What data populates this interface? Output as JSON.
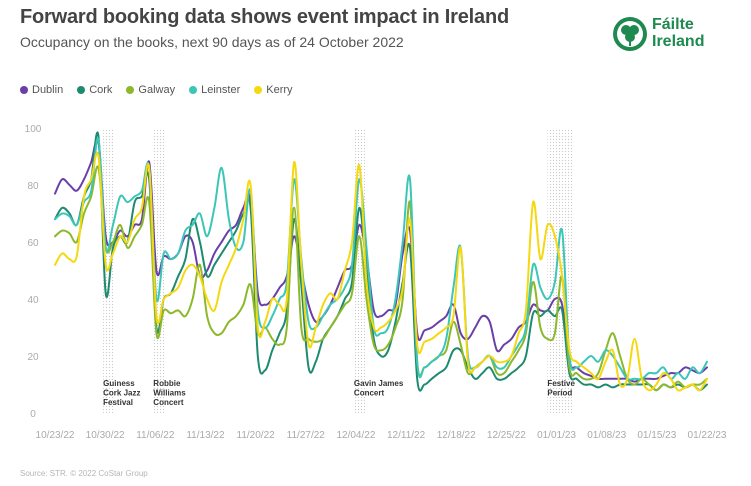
{
  "title": "Forward booking data shows event impact in Ireland",
  "subtitle": "Occupancy on the books, next 90 days as of 24 October 2022",
  "logo": {
    "line1": "Fáilte",
    "line2": "Ireland",
    "icon": "shamrock-icon",
    "color": "#1f8a4f"
  },
  "source": "Source: STR. © 2022 CoStar Group",
  "chart_data": {
    "type": "line",
    "title": "Forward booking data shows event impact in Ireland",
    "xlabel": "",
    "ylabel": "",
    "ylim": [
      0,
      100
    ],
    "yticks": [
      0,
      20,
      40,
      60,
      80,
      100
    ],
    "x_start": "10/23/22",
    "days": 91,
    "xticks": [
      {
        "day": 0,
        "label": "10/23/22"
      },
      {
        "day": 7,
        "label": "10/30/22"
      },
      {
        "day": 14,
        "label": "11/06/22"
      },
      {
        "day": 21,
        "label": "11/13/22"
      },
      {
        "day": 28,
        "label": "11/20/22"
      },
      {
        "day": 35,
        "label": "11/27/22"
      },
      {
        "day": 42,
        "label": "12/04/22"
      },
      {
        "day": 49,
        "label": "12/11/22"
      },
      {
        "day": 56,
        "label": "12/18/22"
      },
      {
        "day": 63,
        "label": "12/25/22"
      },
      {
        "day": 70,
        "label": "01/01/23"
      },
      {
        "day": 77,
        "label": "01/08/23"
      },
      {
        "day": 84,
        "label": "01/15/23"
      },
      {
        "day": 91,
        "label": "01/22/23"
      }
    ],
    "legend_position": "top-left",
    "annotations": [
      {
        "day_from": 7,
        "day_to": 8,
        "lines": [
          "Guiness",
          "Cork Jazz",
          "Festival"
        ]
      },
      {
        "day_from": 14,
        "day_to": 15,
        "lines": [
          "Robbie",
          "Williams",
          "Concert"
        ]
      },
      {
        "day_from": 42,
        "day_to": 43,
        "lines": [
          "Gavin James",
          "Concert"
        ]
      },
      {
        "day_from": 69,
        "day_to": 72,
        "lines": [
          "Festive",
          "Period"
        ]
      }
    ],
    "series": [
      {
        "name": "Dublin",
        "color": "#6a3fa8",
        "values": [
          77,
          82,
          80,
          78,
          82,
          88,
          95,
          62,
          60,
          64,
          62,
          66,
          68,
          88,
          50,
          55,
          54,
          56,
          62,
          60,
          48,
          50,
          56,
          60,
          64,
          66,
          72,
          75,
          42,
          38,
          40,
          44,
          48,
          62,
          50,
          38,
          32,
          34,
          38,
          44,
          50,
          52,
          66,
          55,
          36,
          34,
          36,
          38,
          56,
          64,
          28,
          29,
          30,
          32,
          34,
          38,
          28,
          26,
          30,
          34,
          32,
          22,
          24,
          26,
          30,
          32,
          38,
          36,
          36,
          40,
          38,
          18,
          16,
          14,
          13,
          12,
          12,
          12,
          12,
          12,
          11,
          12,
          12,
          12,
          13,
          14,
          14,
          16,
          15,
          14,
          16
        ]
      },
      {
        "name": "Cork",
        "color": "#1e8a70",
        "values": [
          68,
          72,
          70,
          66,
          76,
          82,
          97,
          42,
          58,
          62,
          60,
          74,
          76,
          82,
          30,
          40,
          42,
          48,
          54,
          68,
          60,
          48,
          52,
          56,
          60,
          64,
          70,
          72,
          20,
          15,
          22,
          28,
          36,
          68,
          45,
          16,
          18,
          26,
          30,
          34,
          40,
          46,
          72,
          50,
          26,
          20,
          22,
          32,
          46,
          58,
          12,
          10,
          12,
          14,
          16,
          22,
          22,
          16,
          12,
          14,
          16,
          12,
          12,
          14,
          16,
          20,
          35,
          34,
          36,
          34,
          36,
          14,
          12,
          10,
          10,
          9,
          10,
          9,
          10,
          10,
          10,
          10,
          10,
          8,
          10,
          9,
          10,
          9,
          10,
          8,
          10
        ]
      },
      {
        "name": "Galway",
        "color": "#8cb82b",
        "values": [
          62,
          64,
          63,
          60,
          70,
          76,
          86,
          58,
          60,
          66,
          58,
          62,
          66,
          74,
          28,
          36,
          35,
          36,
          34,
          40,
          52,
          34,
          28,
          28,
          32,
          34,
          38,
          45,
          28,
          30,
          26,
          24,
          30,
          72,
          30,
          26,
          25,
          26,
          30,
          34,
          38,
          42,
          62,
          40,
          24,
          22,
          24,
          30,
          40,
          74,
          18,
          16,
          18,
          20,
          22,
          32,
          24,
          14,
          16,
          18,
          20,
          14,
          14,
          18,
          22,
          28,
          46,
          30,
          26,
          28,
          48,
          16,
          14,
          12,
          12,
          14,
          22,
          28,
          20,
          12,
          10,
          12,
          10,
          8,
          10,
          9,
          11,
          9,
          10,
          10,
          12
        ]
      },
      {
        "name": "Leinster",
        "color": "#3cc6b8",
        "values": [
          68,
          70,
          69,
          66,
          74,
          78,
          96,
          58,
          66,
          76,
          74,
          76,
          78,
          86,
          40,
          56,
          54,
          56,
          64,
          66,
          70,
          62,
          72,
          86,
          68,
          58,
          60,
          78,
          36,
          30,
          34,
          40,
          46,
          82,
          54,
          32,
          30,
          34,
          38,
          40,
          44,
          52,
          82,
          58,
          30,
          28,
          30,
          40,
          60,
          82,
          18,
          16,
          18,
          20,
          26,
          44,
          58,
          20,
          16,
          18,
          20,
          16,
          16,
          20,
          24,
          30,
          52,
          44,
          40,
          46,
          64,
          20,
          16,
          18,
          20,
          18,
          22,
          20,
          16,
          12,
          12,
          12,
          14,
          14,
          16,
          12,
          14,
          12,
          16,
          14,
          18
        ]
      },
      {
        "name": "Kerry",
        "color": "#f5d80f",
        "values": [
          52,
          56,
          54,
          55,
          76,
          82,
          90,
          52,
          56,
          62,
          60,
          68,
          72,
          86,
          34,
          40,
          42,
          44,
          50,
          52,
          48,
          40,
          36,
          46,
          52,
          58,
          68,
          80,
          30,
          32,
          40,
          38,
          40,
          88,
          52,
          24,
          30,
          38,
          42,
          40,
          50,
          60,
          87,
          46,
          30,
          30,
          32,
          36,
          44,
          68,
          24,
          25,
          26,
          28,
          30,
          34,
          58,
          18,
          16,
          18,
          20,
          18,
          18,
          20,
          28,
          36,
          74,
          54,
          66,
          62,
          48,
          22,
          18,
          16,
          14,
          12,
          18,
          22,
          10,
          12,
          26,
          12,
          8,
          10,
          14,
          12,
          8,
          9,
          10,
          8,
          12
        ]
      }
    ]
  }
}
